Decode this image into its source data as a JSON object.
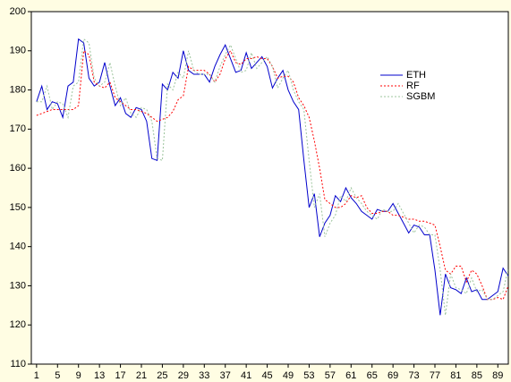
{
  "chart_data": {
    "type": "line",
    "x": [
      1,
      2,
      3,
      4,
      5,
      6,
      7,
      8,
      9,
      10,
      11,
      12,
      13,
      14,
      15,
      16,
      17,
      18,
      19,
      20,
      21,
      22,
      23,
      24,
      25,
      26,
      27,
      28,
      29,
      30,
      31,
      32,
      33,
      34,
      35,
      36,
      37,
      38,
      39,
      40,
      41,
      42,
      43,
      44,
      45,
      46,
      47,
      48,
      49,
      50,
      51,
      52,
      53,
      54,
      55,
      56,
      57,
      58,
      59,
      60,
      61,
      62,
      63,
      64,
      65,
      66,
      67,
      68,
      69,
      70,
      71,
      72,
      73,
      74,
      75,
      76,
      77,
      78,
      79,
      80,
      81,
      82,
      83,
      84,
      85,
      86,
      87,
      88,
      89,
      90,
      91
    ],
    "xlim": [
      0,
      91
    ],
    "xticks": [
      1,
      5,
      9,
      13,
      17,
      21,
      25,
      29,
      33,
      37,
      41,
      45,
      49,
      53,
      57,
      61,
      65,
      69,
      73,
      77,
      81,
      85,
      89
    ],
    "ylim": [
      110,
      200
    ],
    "yticks": [
      110,
      120,
      130,
      140,
      150,
      160,
      170,
      180,
      190,
      200
    ],
    "series": [
      {
        "name": "ETH",
        "color": "#0000cc",
        "dash": "solid",
        "values": [
          177,
          181,
          175,
          177,
          176.5,
          173,
          181,
          182,
          193,
          192,
          183,
          181,
          182,
          187,
          181,
          176,
          178,
          174,
          173,
          175.5,
          175,
          172,
          162.5,
          162,
          181.5,
          180,
          184.5,
          183,
          190,
          185,
          184,
          184,
          184,
          182,
          186,
          189,
          191.5,
          188,
          184.5,
          185,
          189.5,
          185.5,
          187,
          188.5,
          186,
          180.5,
          183,
          185,
          180,
          177,
          175,
          162,
          150,
          153.5,
          142.5,
          146,
          148,
          153,
          151.5,
          155,
          152.5,
          151,
          149,
          148,
          147,
          149.5,
          149,
          149,
          151,
          148.5,
          146,
          143.5,
          145.5,
          145,
          143,
          143,
          134,
          122.5,
          133,
          129.5,
          129,
          128,
          132,
          128.5,
          129,
          126.5,
          126.5,
          127.5,
          128.5,
          134.5,
          132.5
        ]
      },
      {
        "name": "RF",
        "color": "#ff0000",
        "dash": "dotted",
        "values": [
          173.5,
          174,
          174.5,
          175,
          175,
          175,
          175,
          175,
          176,
          190,
          189,
          182,
          181,
          180.5,
          182,
          178,
          177,
          176,
          175,
          175,
          174.5,
          174,
          173,
          172,
          172.5,
          173,
          174.5,
          177.5,
          178.5,
          186,
          185,
          185,
          185,
          184,
          182,
          184,
          188,
          190,
          187,
          186.5,
          188,
          188,
          188.5,
          188,
          188,
          186,
          183,
          183.5,
          183.5,
          182,
          178,
          176,
          173,
          167,
          160,
          152,
          151,
          150,
          150,
          151,
          153,
          152.5,
          153,
          150,
          148.5,
          148.5,
          149,
          149,
          148,
          148,
          147.5,
          147,
          147,
          146.5,
          146.5,
          146,
          145.5,
          140,
          134,
          133,
          135,
          135,
          131,
          134,
          133,
          130,
          126.5,
          126.5,
          127,
          126.5,
          130
        ]
      },
      {
        "name": "SGBM",
        "color": "#9cc49c",
        "dash": "dotted",
        "values": [
          177,
          177,
          181,
          175,
          177,
          176.5,
          173,
          181,
          182,
          193,
          192,
          183,
          181,
          182,
          187,
          181,
          176,
          178,
          174,
          173,
          175.5,
          175,
          172,
          162.5,
          162,
          181.5,
          180,
          184.5,
          183,
          190,
          185,
          184,
          184,
          184,
          182,
          186,
          189,
          191.5,
          188,
          184.5,
          185,
          189.5,
          185.5,
          187,
          188.5,
          186,
          180.5,
          183,
          185,
          180,
          177,
          175,
          162,
          150,
          153.5,
          142.5,
          146,
          148,
          153,
          151.5,
          155,
          152.5,
          151,
          149,
          148,
          147,
          149.5,
          149,
          149,
          151,
          148.5,
          146,
          143.5,
          145.5,
          145,
          143,
          143,
          134,
          122.5,
          133,
          129.5,
          129,
          128,
          132,
          128.5,
          129,
          126.5,
          126.5,
          127.5,
          128.5,
          134.5
        ]
      }
    ]
  }
}
